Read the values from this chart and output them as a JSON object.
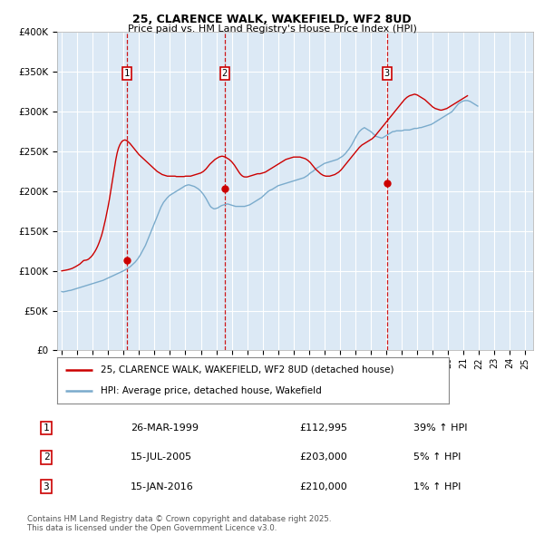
{
  "title": "25, CLARENCE WALK, WAKEFIELD, WF2 8UD",
  "subtitle": "Price paid vs. HM Land Registry's House Price Index (HPI)",
  "legend_line1": "25, CLARENCE WALK, WAKEFIELD, WF2 8UD (detached house)",
  "legend_line2": "HPI: Average price, detached house, Wakefield",
  "footer_line1": "Contains HM Land Registry data © Crown copyright and database right 2025.",
  "footer_line2": "This data is licensed under the Open Government Licence v3.0.",
  "red_color": "#cc0000",
  "blue_color": "#7aabcc",
  "bg_color": "#dce9f5",
  "sale_marker_color": "#cc0000",
  "sale_box_color": "#cc0000",
  "grid_color": "#ffffff",
  "sales": [
    {
      "num": 1,
      "date": "26-MAR-1999",
      "price": 112995,
      "hpi_pct": "39%",
      "year": 1999.23
    },
    {
      "num": 2,
      "date": "15-JUL-2005",
      "price": 203000,
      "hpi_pct": "5%",
      "year": 2005.54
    },
    {
      "num": 3,
      "date": "15-JAN-2016",
      "price": 210000,
      "hpi_pct": "1%",
      "year": 2016.04
    }
  ],
  "ylim": [
    0,
    400000
  ],
  "xlim_start": 1994.7,
  "xlim_end": 2025.5,
  "hpi_months": 373,
  "hpi_start_year": 1995.0,
  "hpi_values": [
    74000,
    73500,
    73800,
    74200,
    74500,
    75000,
    75200,
    75500,
    76000,
    76500,
    77000,
    77500,
    78000,
    78500,
    79000,
    79500,
    80000,
    80500,
    81000,
    81500,
    82000,
    82500,
    83000,
    83500,
    84000,
    84500,
    85000,
    85500,
    86000,
    86500,
    87000,
    87500,
    88000,
    88700,
    89500,
    90300,
    91000,
    91800,
    92500,
    93300,
    94000,
    94800,
    95500,
    96300,
    97000,
    97800,
    98500,
    99300,
    100000,
    101000,
    102000,
    103000,
    104000,
    105000,
    106500,
    108000,
    109500,
    111000,
    113000,
    115000,
    117500,
    120000,
    123000,
    126000,
    129000,
    132000,
    136000,
    140000,
    144000,
    148000,
    152000,
    156000,
    160000,
    164000,
    168000,
    172000,
    176000,
    180000,
    183000,
    186000,
    188000,
    190000,
    192000,
    193500,
    195000,
    196000,
    197000,
    198000,
    199000,
    200000,
    201000,
    202000,
    203000,
    204000,
    205000,
    206000,
    207000,
    207500,
    208000,
    208000,
    207500,
    207000,
    206500,
    206000,
    205000,
    204000,
    203000,
    201500,
    200000,
    198000,
    196000,
    193500,
    191000,
    188000,
    185000,
    182000,
    180000,
    179000,
    178000,
    178000,
    178500,
    179000,
    180000,
    181000,
    182000,
    182500,
    183000,
    183500,
    184000,
    184000,
    183500,
    183000,
    182500,
    182000,
    181500,
    181000,
    181000,
    181000,
    181000,
    181000,
    181000,
    181000,
    181000,
    181500,
    182000,
    182500,
    183000,
    184000,
    185000,
    186000,
    187000,
    188000,
    189000,
    190000,
    191000,
    192000,
    193500,
    195000,
    196500,
    198000,
    199500,
    200500,
    201500,
    202000,
    203000,
    204000,
    205000,
    206000,
    207000,
    207500,
    208000,
    208500,
    209000,
    209500,
    210000,
    210500,
    211000,
    211500,
    212000,
    212500,
    213000,
    213500,
    214000,
    214500,
    215000,
    215500,
    216000,
    216500,
    217000,
    218000,
    219000,
    220000,
    221500,
    223000,
    224000,
    225000,
    226500,
    228000,
    229000,
    230000,
    231000,
    232000,
    233000,
    234000,
    235000,
    235500,
    236000,
    236500,
    237000,
    237500,
    238000,
    238500,
    239000,
    239500,
    240000,
    241000,
    242000,
    243000,
    244000,
    245500,
    247000,
    249000,
    251000,
    253000,
    255500,
    258000,
    261000,
    264000,
    267000,
    270000,
    272500,
    275000,
    276500,
    278000,
    279000,
    280000,
    279000,
    278000,
    277000,
    276000,
    275000,
    273500,
    272000,
    270500,
    269000,
    268500,
    268000,
    267500,
    267000,
    267000,
    268000,
    269000,
    270000,
    271000,
    272000,
    273000,
    274000,
    275000,
    275000,
    275500,
    276000,
    276000,
    276000,
    276000,
    276000,
    276500,
    277000,
    277000,
    277000,
    277000,
    277000,
    277500,
    278000,
    278500,
    279000,
    279000,
    279000,
    279500,
    280000,
    280000,
    280500,
    281000,
    281500,
    282000,
    282500,
    283000,
    283500,
    284000,
    285000,
    286000,
    287000,
    288000,
    289000,
    290000,
    291000,
    292000,
    293000,
    294000,
    295000,
    296000,
    297000,
    298000,
    299000,
    300000,
    302000,
    304000,
    306000,
    308000,
    310000,
    311000,
    312000,
    313000,
    313500,
    314000,
    314000,
    314000,
    313500,
    313000,
    312000,
    311000,
    310000,
    309000,
    308000,
    307000
  ],
  "price_values": [
    100000,
    100200,
    100500,
    100800,
    101000,
    101500,
    102000,
    102500,
    103000,
    103800,
    104500,
    105500,
    106500,
    107500,
    108500,
    110000,
    111500,
    112995,
    113200,
    113500,
    114000,
    115000,
    116500,
    118000,
    120000,
    122500,
    125000,
    128000,
    131500,
    135500,
    140000,
    145000,
    151000,
    158000,
    165000,
    173000,
    181000,
    190000,
    200000,
    210000,
    220000,
    230000,
    240000,
    248000,
    254000,
    258000,
    261000,
    263000,
    264000,
    264500,
    264000,
    263000,
    261500,
    260000,
    258000,
    256000,
    254000,
    252000,
    250000,
    248000,
    246000,
    244500,
    243000,
    241500,
    240000,
    238500,
    237000,
    235500,
    234000,
    232500,
    231000,
    229500,
    228000,
    226500,
    225000,
    224000,
    223000,
    222000,
    221000,
    220500,
    220000,
    219500,
    219000,
    219000,
    219000,
    219000,
    219000,
    219000,
    219000,
    218500,
    218500,
    218500,
    218500,
    218500,
    218500,
    218500,
    219000,
    219000,
    219000,
    219000,
    219000,
    219500,
    220000,
    220500,
    221000,
    221500,
    222000,
    222500,
    223000,
    224000,
    225000,
    226500,
    228000,
    230000,
    232000,
    234000,
    235500,
    237000,
    238500,
    240000,
    241000,
    242000,
    243000,
    243500,
    244000,
    244000,
    243500,
    243000,
    242000,
    241000,
    240000,
    238500,
    237000,
    235000,
    233000,
    230500,
    228000,
    225500,
    223000,
    221000,
    219500,
    218500,
    218000,
    218000,
    218000,
    218500,
    219000,
    219500,
    220000,
    220500,
    221000,
    221500,
    222000,
    222000,
    222000,
    222500,
    223000,
    223500,
    224000,
    225000,
    226000,
    227000,
    228000,
    229000,
    230000,
    231000,
    232000,
    233000,
    234000,
    235000,
    236000,
    237000,
    238000,
    239000,
    240000,
    240500,
    241000,
    241500,
    242000,
    242500,
    243000,
    243000,
    243000,
    243000,
    243000,
    243000,
    242500,
    242000,
    241500,
    241000,
    240000,
    239000,
    237500,
    236000,
    234000,
    232000,
    230000,
    228000,
    226500,
    225000,
    223500,
    222000,
    221000,
    220000,
    219500,
    219000,
    219000,
    219000,
    219000,
    219500,
    220000,
    220500,
    221000,
    222000,
    223000,
    224000,
    225500,
    227000,
    229000,
    231000,
    233000,
    235000,
    237000,
    239000,
    241000,
    243000,
    245000,
    247000,
    249000,
    251000,
    253000,
    255000,
    256500,
    258000,
    259000,
    260000,
    261000,
    262000,
    263000,
    264000,
    265000,
    266000,
    267500,
    269000,
    271000,
    273000,
    275000,
    277000,
    279000,
    281000,
    283000,
    285000,
    287000,
    289000,
    291000,
    293000,
    295000,
    297000,
    299000,
    301000,
    303000,
    305000,
    307000,
    309000,
    311000,
    313000,
    315000,
    316500,
    318000,
    319000,
    320000,
    320500,
    321000,
    321500,
    322000,
    321500,
    321000,
    320000,
    319000,
    318000,
    317000,
    316000,
    315000,
    313500,
    312000,
    310500,
    309000,
    307500,
    306000,
    305000,
    304000,
    303500,
    303000,
    302500,
    302000,
    302000,
    302500,
    303000,
    303500,
    304000,
    305000,
    306000,
    307000,
    308000,
    309000,
    310000,
    311000,
    312000,
    313000,
    314000,
    315000,
    316000,
    317000,
    318000,
    319000,
    320000
  ]
}
